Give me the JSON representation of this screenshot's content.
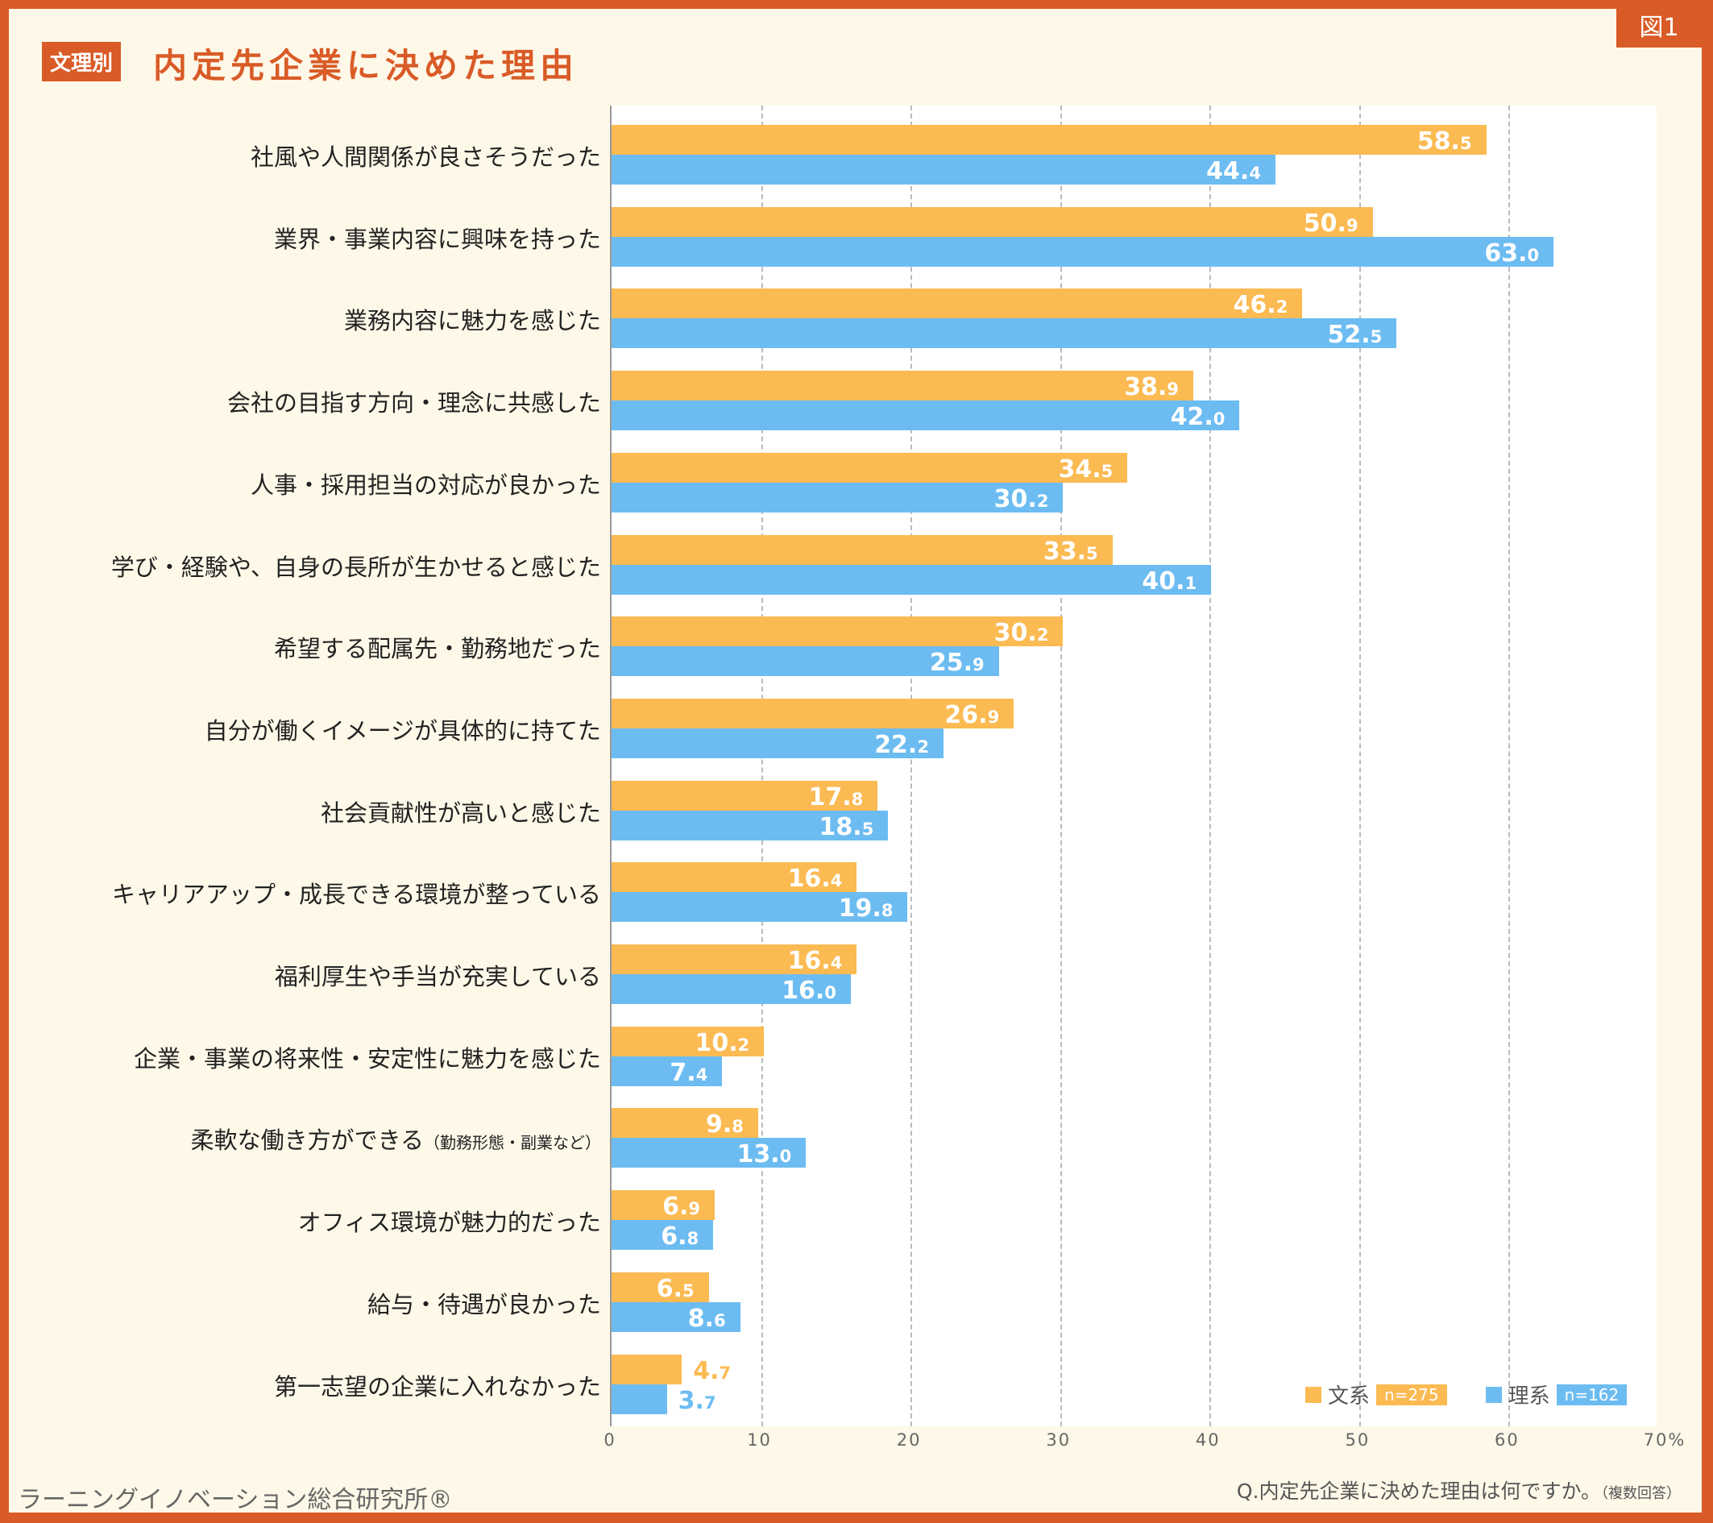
{
  "header": {
    "tag": "文理別",
    "title": "内定先企業に決めた理由",
    "figure_label": "図1"
  },
  "footer": {
    "credit": "ラーニングイノベーション総合研究所®",
    "question": "Q.内定先企業に決めた理由は何ですか。",
    "question_note": "（複数回答）"
  },
  "colors": {
    "border": "#d95b27",
    "bunkei": "#fbba52",
    "rikei": "#6cbcf2"
  },
  "chart_data": {
    "type": "bar",
    "orientation": "horizontal",
    "categories": [
      "社風や人間関係が良さそうだった",
      "業界・事業内容に興味を持った",
      "業務内容に魅力を感じた",
      "会社の目指す方向・理念に共感した",
      "人事・採用担当の対応が良かった",
      "学び・経験や、自身の長所が生かせると感じた",
      "希望する配属先・勤務地だった",
      "自分が働くイメージが具体的に持てた",
      "社会貢献性が高いと感じた",
      "キャリアアップ・成長できる環境が整っている",
      "福利厚生や手当が充実している",
      "企業・事業の将来性・安定性に魅力を感じた",
      "柔軟な働き方ができる",
      "オフィス環境が魅力的だった",
      "給与・待遇が良かった",
      "第一志望の企業に入れなかった"
    ],
    "category_notes": {
      "12": "（勤務形態・副業など）"
    },
    "series": [
      {
        "name": "文系",
        "n": "n=275",
        "values": [
          58.5,
          50.9,
          46.2,
          38.9,
          34.5,
          33.5,
          30.2,
          26.9,
          17.8,
          16.4,
          16.4,
          10.2,
          9.8,
          6.9,
          6.5,
          4.7
        ]
      },
      {
        "name": "理系",
        "n": "n=162",
        "values": [
          44.4,
          63.0,
          52.5,
          42.0,
          30.2,
          40.1,
          25.9,
          22.2,
          18.5,
          19.8,
          16.0,
          7.4,
          13.0,
          6.8,
          8.6,
          3.7
        ]
      }
    ],
    "xlim": [
      0,
      70
    ],
    "xticks": [
      "0",
      "10",
      "20",
      "30",
      "40",
      "50",
      "60",
      "70%"
    ],
    "grid": true,
    "legend": "bottom-right"
  }
}
